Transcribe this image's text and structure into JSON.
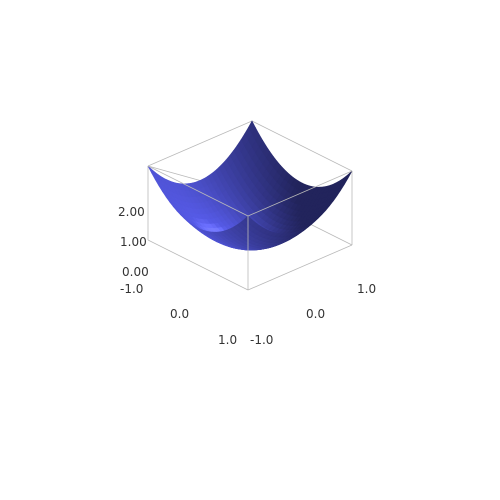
{
  "chart_data": {
    "type": "surface",
    "function": "z = x^2 + y^2",
    "x_range": [
      -1.0,
      1.0
    ],
    "y_range": [
      -1.0,
      1.0
    ],
    "zlim": [
      0.0,
      2.0
    ],
    "x_ticks": [
      "-1.0",
      "0.0",
      "1.0"
    ],
    "y_ticks": [
      "-1.0",
      "0.0",
      "1.0"
    ],
    "z_ticks": [
      "0.00",
      "1.00",
      "2.00"
    ],
    "corner_values": [
      {
        "x": -1.0,
        "y": -1.0,
        "z": 2.0
      },
      {
        "x": 1.0,
        "y": -1.0,
        "z": 2.0
      },
      {
        "x": 1.0,
        "y": 1.0,
        "z": 2.0
      },
      {
        "x": -1.0,
        "y": 1.0,
        "z": 2.0
      }
    ],
    "minimum": {
      "x": 0.0,
      "y": 0.0,
      "z": 0.0
    },
    "surface_color": "#5a5ff2",
    "box": true,
    "grid": false,
    "legend": "none"
  }
}
